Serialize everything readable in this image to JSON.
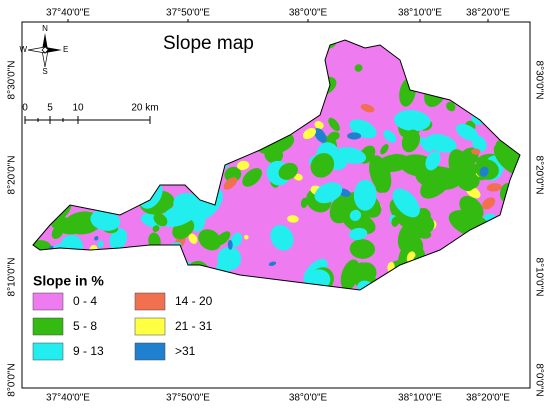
{
  "title": "Slope map",
  "compass": {
    "n": "N",
    "e": "E",
    "s": "S",
    "w": "W"
  },
  "scale_bar": {
    "labels": [
      "0",
      "5",
      "10",
      "20 km"
    ]
  },
  "longitude_labels": [
    "37°40'0\"E",
    "37°50'0\"E",
    "38°0'0\"E",
    "38°10'0\"E",
    "38°20'0\"E"
  ],
  "latitude_labels": [
    "8°30'0\"N",
    "8°20'0\"N",
    "8°10'0\"N",
    "8°0'0\"N"
  ],
  "legend": {
    "title": "Slope in %",
    "items": [
      {
        "label": "0 - 4",
        "color": "#ee7cf0"
      },
      {
        "label": "5 - 8",
        "color": "#33bb11"
      },
      {
        "label": "9 - 13",
        "color": "#22eef0"
      },
      {
        "label": "14 - 20",
        "color": "#f07050"
      },
      {
        "label": "21 - 31",
        "color": "#ffff44"
      },
      {
        "label": ">31",
        "color": "#1f80d0"
      }
    ]
  }
}
